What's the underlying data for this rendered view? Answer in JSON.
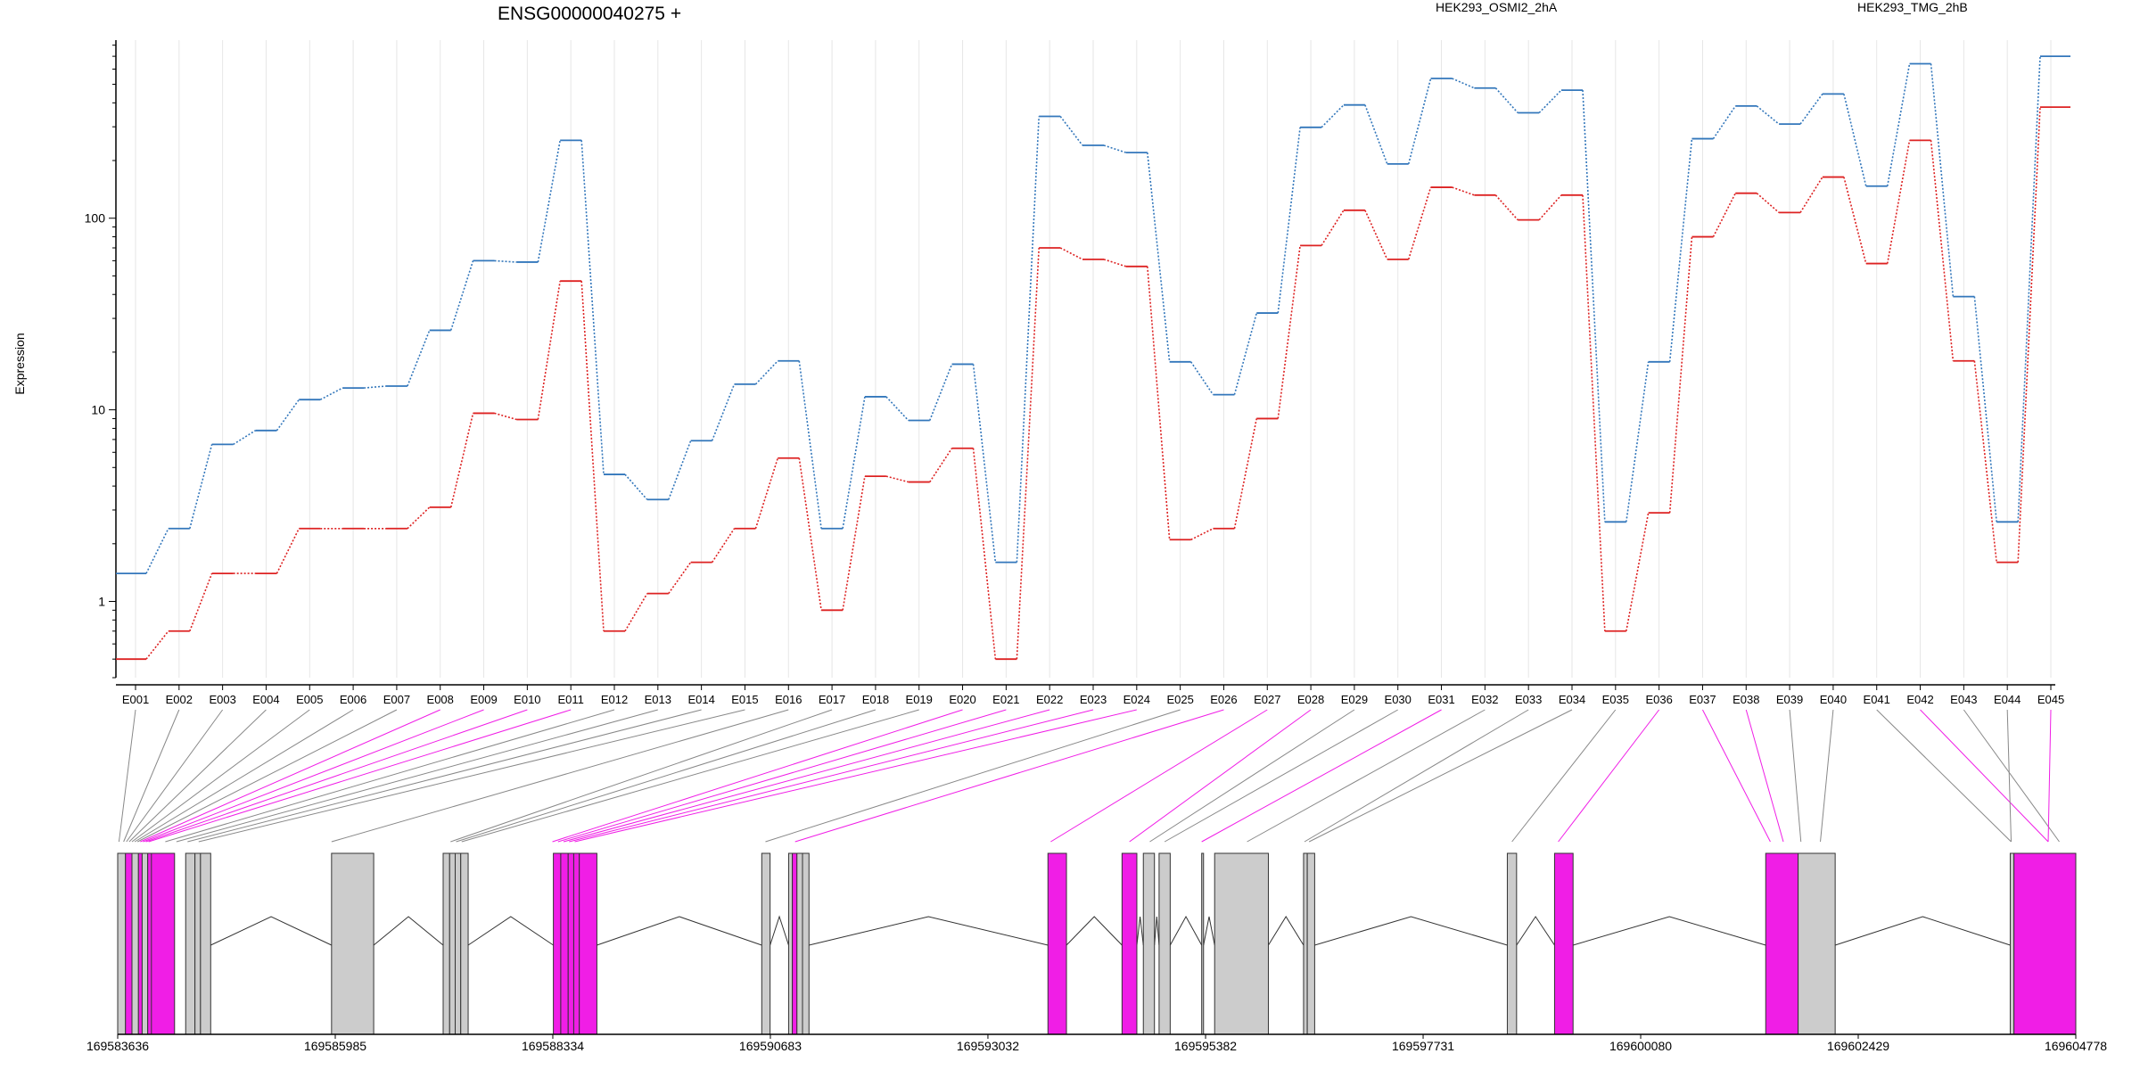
{
  "chart_data": {
    "type": "line",
    "title": "ENSG00000040275 +",
    "ylabel": "Expression",
    "yscale": "log",
    "ylim": [
      0.4,
      850
    ],
    "yticks": [
      "1",
      "10",
      "100"
    ],
    "grid": "vertical",
    "legend_position": "top-right",
    "categories": [
      "E001",
      "E002",
      "E003",
      "E004",
      "E005",
      "E006",
      "E007",
      "E008",
      "E009",
      "E010",
      "E011",
      "E012",
      "E013",
      "E014",
      "E015",
      "E016",
      "E017",
      "E018",
      "E019",
      "E020",
      "E021",
      "E022",
      "E023",
      "E024",
      "E025",
      "E026",
      "E027",
      "E028",
      "E029",
      "E030",
      "E031",
      "E032",
      "E033",
      "E034",
      "E035",
      "E036",
      "E037",
      "E038",
      "E039",
      "E040",
      "E041",
      "E042",
      "E043",
      "E044",
      "E045"
    ],
    "series": [
      {
        "name": "HEK293_OSMI2_2hA",
        "color": "#dd2222",
        "values": [
          0.5,
          0.7,
          1.4,
          1.4,
          2.4,
          2.4,
          2.4,
          3.1,
          9.6,
          8.9,
          47,
          0.7,
          1.1,
          1.6,
          2.4,
          5.6,
          0.9,
          4.5,
          4.2,
          6.3,
          0.5,
          70,
          61,
          56,
          2.1,
          2.4,
          9,
          72,
          110,
          61,
          145,
          132,
          98,
          132,
          0.7,
          2.9,
          80,
          135,
          107,
          164,
          58,
          255,
          18,
          1.6,
          380
        ]
      },
      {
        "name": "HEK293_TMG_2hB",
        "color": "#3377bb",
        "values": [
          1.4,
          2.4,
          6.6,
          7.8,
          11.3,
          13,
          13.3,
          26,
          60,
          59,
          255,
          4.6,
          3.4,
          6.9,
          13.6,
          18,
          2.4,
          11.7,
          8.8,
          17.3,
          1.6,
          340,
          240,
          220,
          17.8,
          12,
          32,
          298,
          390,
          192,
          536,
          478,
          355,
          466,
          2.6,
          17.8,
          260,
          385,
          310,
          445,
          147,
          640,
          39,
          2.6,
          700
        ]
      }
    ],
    "gene_model": {
      "coord_ticks": [
        "169583636",
        "169585985",
        "169588334",
        "169590683",
        "169593032",
        "169595382",
        "169597731",
        "169600080",
        "169602429",
        "169604778"
      ],
      "coord_range": [
        169583636,
        169604778
      ],
      "exons": [
        {
          "start": 169583636,
          "end": 169583720,
          "fill": "#cccccc"
        },
        {
          "start": 169583720,
          "end": 169583790,
          "fill": "#f01ee6"
        },
        {
          "start": 169583790,
          "end": 169583860,
          "fill": "#cccccc"
        },
        {
          "start": 169583860,
          "end": 169583900,
          "fill": "#f01ee6"
        },
        {
          "start": 169583900,
          "end": 169583960,
          "fill": "#cccccc"
        },
        {
          "start": 169583960,
          "end": 169584020,
          "fill": "#f01ee6"
        },
        {
          "start": 169584020,
          "end": 169584090,
          "fill": "#cccccc"
        },
        {
          "start": 169584090,
          "end": 169584170,
          "fill": "#f01ee6"
        },
        {
          "start": 169584000,
          "end": 169584250,
          "fill": "#f01ee6"
        },
        {
          "start": 169584370,
          "end": 169584470,
          "fill": "#cccccc"
        },
        {
          "start": 169584470,
          "end": 169584530,
          "fill": "#cccccc"
        },
        {
          "start": 169584530,
          "end": 169584640,
          "fill": "#cccccc"
        },
        {
          "start": 169585945,
          "end": 169586400,
          "fill": "#cccccc"
        },
        {
          "start": 169587150,
          "end": 169587220,
          "fill": "#cccccc"
        },
        {
          "start": 169587220,
          "end": 169587280,
          "fill": "#cccccc"
        },
        {
          "start": 169587280,
          "end": 169587340,
          "fill": "#cccccc"
        },
        {
          "start": 169587340,
          "end": 169587420,
          "fill": "#cccccc"
        },
        {
          "start": 169588340,
          "end": 169588420,
          "fill": "#f01ee6"
        },
        {
          "start": 169588420,
          "end": 169588500,
          "fill": "#f01ee6"
        },
        {
          "start": 169588500,
          "end": 169588560,
          "fill": "#f01ee6"
        },
        {
          "start": 169588560,
          "end": 169588620,
          "fill": "#f01ee6"
        },
        {
          "start": 169588620,
          "end": 169588810,
          "fill": "#f01ee6"
        },
        {
          "start": 169590590,
          "end": 169590680,
          "fill": "#cccccc"
        },
        {
          "start": 169590880,
          "end": 169590920,
          "fill": "#cccccc"
        },
        {
          "start": 169590920,
          "end": 169590970,
          "fill": "#f01ee6"
        },
        {
          "start": 169590970,
          "end": 169591030,
          "fill": "#cccccc"
        },
        {
          "start": 169591030,
          "end": 169591100,
          "fill": "#cccccc"
        },
        {
          "start": 169593680,
          "end": 169593880,
          "fill": "#f01ee6"
        },
        {
          "start": 169594480,
          "end": 169594640,
          "fill": "#f01ee6"
        },
        {
          "start": 169594710,
          "end": 169594830,
          "fill": "#cccccc"
        },
        {
          "start": 169594880,
          "end": 169595000,
          "fill": "#cccccc"
        },
        {
          "start": 169595340,
          "end": 169595360,
          "fill": "#cccccc"
        },
        {
          "start": 169595480,
          "end": 169596060,
          "fill": "#cccccc"
        },
        {
          "start": 169596440,
          "end": 169596480,
          "fill": "#cccccc"
        },
        {
          "start": 169596480,
          "end": 169596560,
          "fill": "#cccccc"
        },
        {
          "start": 169598640,
          "end": 169598740,
          "fill": "#cccccc"
        },
        {
          "start": 169599150,
          "end": 169599350,
          "fill": "#f01ee6"
        },
        {
          "start": 169601430,
          "end": 169601780,
          "fill": "#f01ee6"
        },
        {
          "start": 169601780,
          "end": 169602180,
          "fill": "#cccccc"
        },
        {
          "start": 169604070,
          "end": 169604110,
          "fill": "#cccccc"
        },
        {
          "start": 169604110,
          "end": 169604778,
          "fill": "#f01ee6"
        }
      ],
      "introns": [
        [
          169584640,
          169585945
        ],
        [
          169586400,
          169587150
        ],
        [
          169587420,
          169588340
        ],
        [
          169588810,
          169590590
        ],
        [
          169590680,
          169590880
        ],
        [
          169591100,
          169593680
        ],
        [
          169593880,
          169594480
        ],
        [
          169594640,
          169594710
        ],
        [
          169594830,
          169594880
        ],
        [
          169595000,
          169595340
        ],
        [
          169595360,
          169595480
        ],
        [
          169596060,
          169596440
        ],
        [
          169596560,
          169598640
        ],
        [
          169598740,
          169599150
        ],
        [
          169599350,
          169601430
        ],
        [
          169602180,
          169604070
        ]
      ],
      "exon_links": [
        {
          "exon": "E001",
          "pos": 169583650,
          "color": "#888888"
        },
        {
          "exon": "E002",
          "pos": 169583700,
          "color": "#888888"
        },
        {
          "exon": "E003",
          "pos": 169583730,
          "color": "#888888"
        },
        {
          "exon": "E004",
          "pos": 169583760,
          "color": "#888888"
        },
        {
          "exon": "E005",
          "pos": 169583790,
          "color": "#888888"
        },
        {
          "exon": "E006",
          "pos": 169583820,
          "color": "#888888"
        },
        {
          "exon": "E007",
          "pos": 169583850,
          "color": "#888888"
        },
        {
          "exon": "E008",
          "pos": 169583880,
          "color": "#f01ee6"
        },
        {
          "exon": "E009",
          "pos": 169583910,
          "color": "#f01ee6"
        },
        {
          "exon": "E010",
          "pos": 169583940,
          "color": "#f01ee6"
        },
        {
          "exon": "E011",
          "pos": 169583970,
          "color": "#f01ee6"
        },
        {
          "exon": "E012",
          "pos": 169584150,
          "color": "#888888"
        },
        {
          "exon": "E013",
          "pos": 169584270,
          "color": "#888888"
        },
        {
          "exon": "E014",
          "pos": 169584390,
          "color": "#888888"
        },
        {
          "exon": "E015",
          "pos": 169584510,
          "color": "#888888"
        },
        {
          "exon": "E016",
          "pos": 169585945,
          "color": "#888888"
        },
        {
          "exon": "E017",
          "pos": 169587230,
          "color": "#888888"
        },
        {
          "exon": "E018",
          "pos": 169587290,
          "color": "#888888"
        },
        {
          "exon": "E019",
          "pos": 169587350,
          "color": "#888888"
        },
        {
          "exon": "E020",
          "pos": 169588330,
          "color": "#f01ee6"
        },
        {
          "exon": "E021",
          "pos": 169588390,
          "color": "#f01ee6"
        },
        {
          "exon": "E022",
          "pos": 169588450,
          "color": "#f01ee6"
        },
        {
          "exon": "E023",
          "pos": 169588510,
          "color": "#f01ee6"
        },
        {
          "exon": "E024",
          "pos": 169588570,
          "color": "#f01ee6"
        },
        {
          "exon": "E025",
          "pos": 169590630,
          "color": "#888888"
        },
        {
          "exon": "E026",
          "pos": 169590950,
          "color": "#f01ee6"
        },
        {
          "exon": "E027",
          "pos": 169593710,
          "color": "#f01ee6"
        },
        {
          "exon": "E028",
          "pos": 169594560,
          "color": "#f01ee6"
        },
        {
          "exon": "E029",
          "pos": 169594780,
          "color": "#888888"
        },
        {
          "exon": "E030",
          "pos": 169594940,
          "color": "#888888"
        },
        {
          "exon": "E031",
          "pos": 169595340,
          "color": "#f01ee6"
        },
        {
          "exon": "E032",
          "pos": 169595830,
          "color": "#888888"
        },
        {
          "exon": "E033",
          "pos": 169596450,
          "color": "#888888"
        },
        {
          "exon": "E034",
          "pos": 169596500,
          "color": "#888888"
        },
        {
          "exon": "E035",
          "pos": 169598690,
          "color": "#888888"
        },
        {
          "exon": "E036",
          "pos": 169599190,
          "color": "#f01ee6"
        },
        {
          "exon": "E037",
          "pos": 169601480,
          "color": "#f01ee6"
        },
        {
          "exon": "E038",
          "pos": 169601620,
          "color": "#f01ee6"
        },
        {
          "exon": "E039",
          "pos": 169601810,
          "color": "#888888"
        },
        {
          "exon": "E040",
          "pos": 169602020,
          "color": "#888888"
        },
        {
          "exon": "E041",
          "pos": 169604080,
          "color": "#888888"
        },
        {
          "exon": "E042",
          "pos": 169604480,
          "color": "#f01ee6"
        },
        {
          "exon": "E043",
          "pos": 169604600,
          "color": "#888888"
        },
        {
          "exon": "E044",
          "pos": 169604080,
          "color": "#888888"
        },
        {
          "exon": "E045",
          "pos": 169604480,
          "color": "#f01ee6"
        }
      ]
    }
  }
}
